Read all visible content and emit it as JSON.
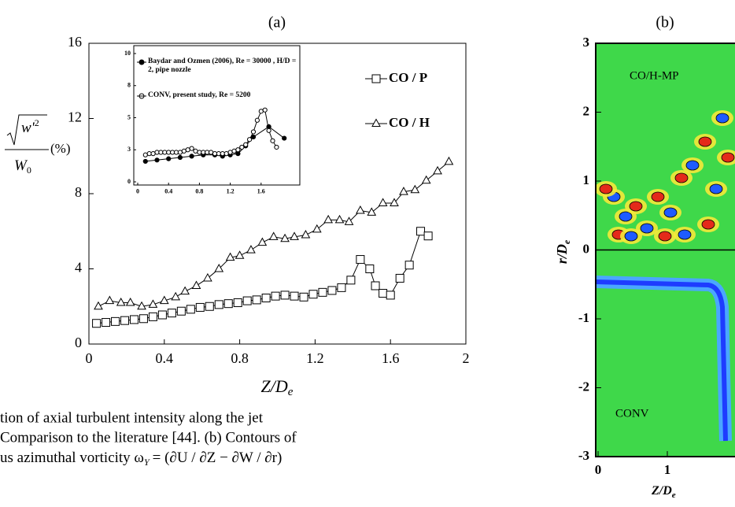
{
  "chart_data": [
    {
      "type": "line",
      "title": "(a)",
      "xlabel": "Z/D",
      "xlabel_sub": "e",
      "ylabel": {
        "numerator": "w'",
        "exponent": "2",
        "denominator": "W",
        "denominator_sub": "0",
        "unit": "(%)"
      },
      "xlim": [
        0,
        2
      ],
      "ylim": [
        0,
        16
      ],
      "xticks": [
        0,
        0.4,
        0.8,
        1.2,
        1.6,
        2
      ],
      "yticks": [
        0,
        4,
        8,
        12,
        16
      ],
      "series": [
        {
          "name": "CO / P",
          "marker": "square",
          "color": "#000000",
          "x": [
            0.04,
            0.09,
            0.14,
            0.19,
            0.24,
            0.29,
            0.34,
            0.39,
            0.44,
            0.49,
            0.54,
            0.59,
            0.64,
            0.69,
            0.74,
            0.79,
            0.84,
            0.89,
            0.94,
            0.99,
            1.04,
            1.09,
            1.14,
            1.19,
            1.24,
            1.29,
            1.34,
            1.39,
            1.44,
            1.49,
            1.52,
            1.56,
            1.6,
            1.65,
            1.7,
            1.76,
            1.8
          ],
          "values": [
            1.1,
            1.15,
            1.2,
            1.25,
            1.3,
            1.35,
            1.45,
            1.55,
            1.65,
            1.75,
            1.85,
            1.95,
            2.0,
            2.1,
            2.15,
            2.2,
            2.3,
            2.35,
            2.45,
            2.55,
            2.6,
            2.55,
            2.5,
            2.65,
            2.75,
            2.85,
            3.0,
            3.4,
            4.5,
            4.0,
            3.1,
            2.7,
            2.6,
            3.5,
            4.2,
            6.0,
            5.75
          ]
        },
        {
          "name": "CO / H",
          "marker": "triangle",
          "color": "#000000",
          "x": [
            0.05,
            0.11,
            0.17,
            0.22,
            0.28,
            0.34,
            0.4,
            0.46,
            0.51,
            0.57,
            0.63,
            0.69,
            0.75,
            0.8,
            0.86,
            0.92,
            0.98,
            1.04,
            1.09,
            1.15,
            1.21,
            1.27,
            1.33,
            1.38,
            1.44,
            1.5,
            1.56,
            1.62,
            1.67,
            1.73,
            1.79,
            1.85,
            1.91
          ],
          "values": [
            2.0,
            2.3,
            2.2,
            2.2,
            2.0,
            2.1,
            2.3,
            2.5,
            2.8,
            3.1,
            3.5,
            4.0,
            4.6,
            4.7,
            5.0,
            5.4,
            5.7,
            5.6,
            5.7,
            5.8,
            6.1,
            6.6,
            6.6,
            6.5,
            7.1,
            7.0,
            7.5,
            7.5,
            8.1,
            8.2,
            8.7,
            9.2,
            9.7
          ]
        }
      ]
    },
    {
      "type": "line",
      "inset": true,
      "xlim": [
        0,
        2
      ],
      "ylim": [
        0,
        10
      ],
      "xticks": [
        0,
        0.4,
        0.8,
        1.2,
        1.6
      ],
      "yticks": [
        0,
        {
          "value": 2.5,
          "label": "3"
        },
        5,
        {
          "value": 7.5,
          "label": "8"
        },
        10
      ],
      "series": [
        {
          "name": "Baydar and Ozmen (2006), Re = 30000 ,  H/D = 2, pipe nozzle",
          "marker": "filled-circle",
          "color": "#000000",
          "x": [
            0.1,
            0.25,
            0.4,
            0.55,
            0.7,
            0.85,
            1.0,
            1.1,
            1.2,
            1.3,
            1.4,
            1.5,
            1.7,
            1.9
          ],
          "values": [
            1.6,
            1.7,
            1.8,
            1.9,
            2.0,
            2.1,
            2.1,
            2.0,
            2.1,
            2.2,
            2.8,
            3.5,
            4.3,
            3.4
          ]
        },
        {
          "name": "CONV, present study, Re = 5200",
          "marker": "open-circle",
          "color": "#000000",
          "x": [
            0.1,
            0.15,
            0.2,
            0.25,
            0.3,
            0.35,
            0.4,
            0.45,
            0.5,
            0.55,
            0.6,
            0.65,
            0.7,
            0.75,
            0.8,
            0.85,
            0.9,
            0.95,
            1.0,
            1.05,
            1.1,
            1.15,
            1.2,
            1.25,
            1.3,
            1.35,
            1.4,
            1.45,
            1.5,
            1.55,
            1.6,
            1.65,
            1.7,
            1.75,
            1.8
          ],
          "values": [
            2.1,
            2.2,
            2.2,
            2.3,
            2.3,
            2.3,
            2.3,
            2.3,
            2.3,
            2.3,
            2.4,
            2.5,
            2.6,
            2.4,
            2.3,
            2.3,
            2.3,
            2.3,
            2.2,
            2.2,
            2.2,
            2.2,
            2.3,
            2.4,
            2.5,
            2.7,
            2.9,
            3.3,
            3.9,
            4.8,
            5.5,
            5.6,
            4.0,
            3.2,
            2.7
          ]
        }
      ]
    },
    {
      "type": "contour",
      "title": "(b)",
      "xlabel": "Z/D",
      "xlabel_sub": "e",
      "ylabel": "r/D",
      "ylabel_sub": "e",
      "xlim": [
        0,
        1
      ],
      "ylim": [
        -3,
        3
      ],
      "xticks": [
        0,
        1
      ],
      "yticks": [
        -3,
        -2,
        -1,
        0,
        1,
        2,
        3
      ],
      "annotations": [
        "CO/H-MP",
        "CONV"
      ]
    }
  ],
  "caption": {
    "line1": "tion of axial turbulent intensity along the jet",
    "line2": "Comparison to the literature [44].  (b) Contours of",
    "line3": "us azimuthal vorticity  ω",
    "line3_sub": "Y",
    "line3_formula": "= (∂U / ∂Z − ∂W / ∂r)"
  }
}
